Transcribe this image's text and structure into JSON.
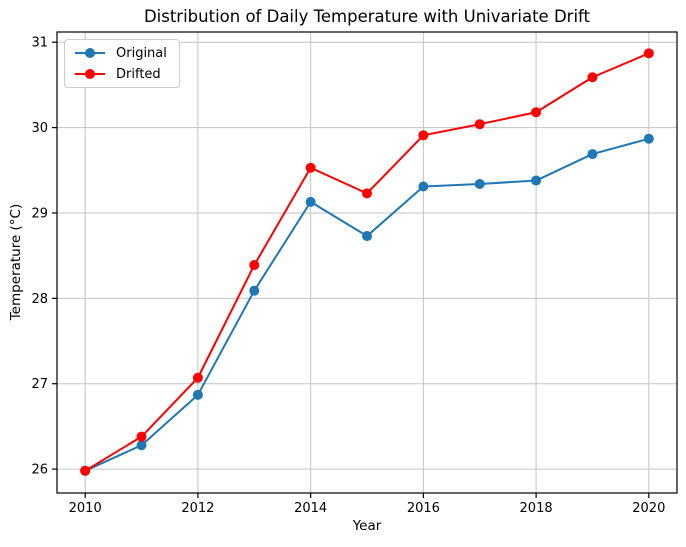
{
  "figure": {
    "title": "Distribution of Daily Temperature with Univariate Drift",
    "xlabel": "Year",
    "ylabel": "Temperature (°C)"
  },
  "chart_data": {
    "type": "line",
    "title": "Distribution of Daily Temperature with Univariate Drift",
    "xlabel": "Year",
    "ylabel": "Temperature (°C)",
    "x": [
      2010,
      2011,
      2012,
      2013,
      2014,
      2015,
      2016,
      2017,
      2018,
      2019,
      2020
    ],
    "series": [
      {
        "name": "Original",
        "color": "#1f77b4",
        "marker": "circle",
        "values": [
          25.98,
          26.28,
          26.87,
          28.09,
          29.13,
          28.73,
          29.31,
          29.34,
          29.38,
          29.69,
          29.87
        ]
      },
      {
        "name": "Drifted",
        "color": "#ff0000",
        "marker": "circle",
        "values": [
          25.98,
          26.38,
          27.07,
          28.39,
          29.53,
          29.23,
          29.91,
          30.04,
          30.18,
          30.59,
          30.87
        ]
      }
    ],
    "xticks": [
      2010,
      2012,
      2014,
      2016,
      2018,
      2020
    ],
    "yticks": [
      26,
      27,
      28,
      29,
      30,
      31
    ],
    "xlim": [
      2009.5,
      2020.5
    ],
    "ylim": [
      25.72,
      31.12
    ],
    "grid": true,
    "grid_color": "#c3c3c3",
    "axis_color": "#000000",
    "legend_position": "upper left"
  }
}
